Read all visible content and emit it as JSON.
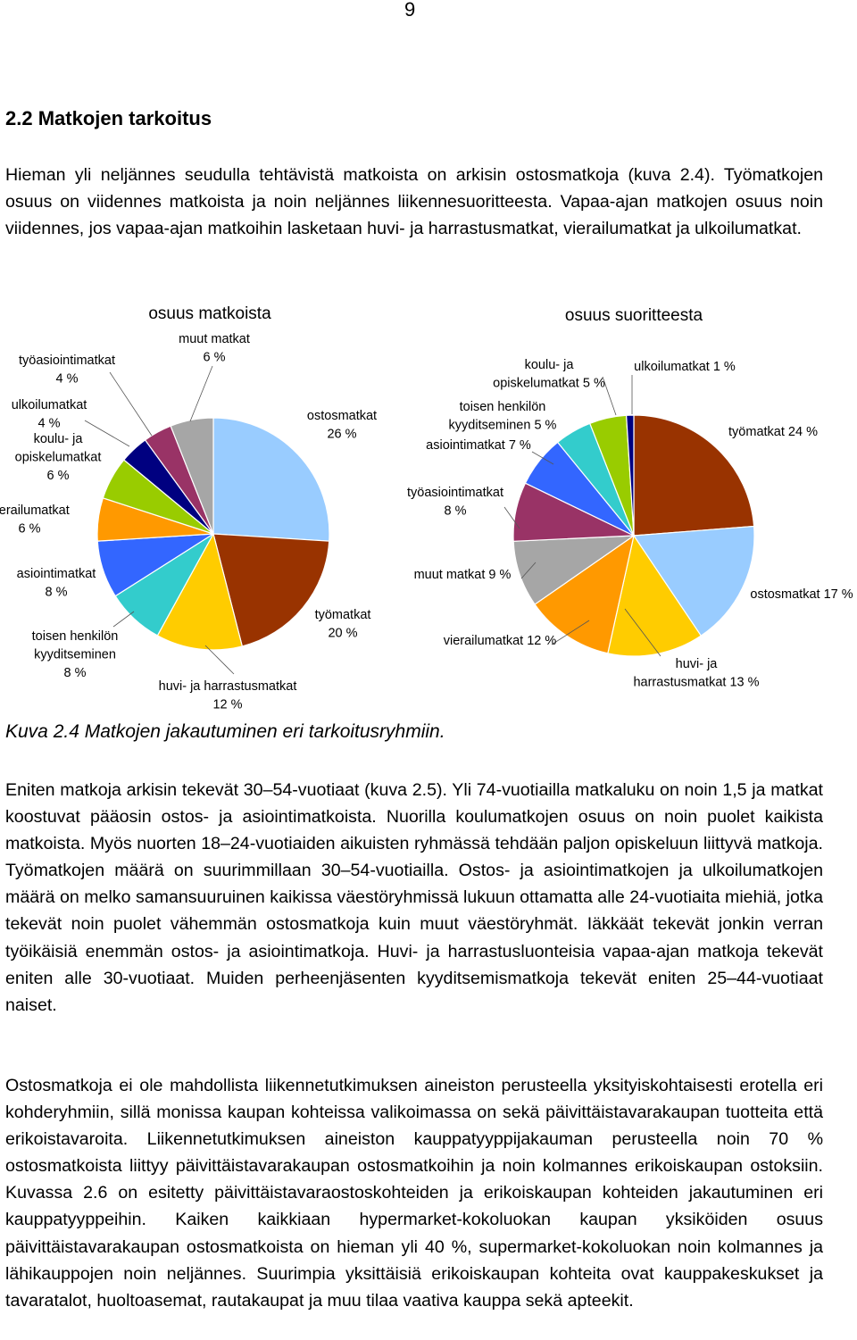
{
  "page_number": "9",
  "heading": "2.2 Matkojen tarkoitus",
  "paragraphs": [
    "Hieman yli neljännes seudulla tehtävistä matkoista on arkisin ostosmatkoja (kuva 2.4). Työmatkojen osuus on viidennes matkoista ja noin neljännes liikennesuoritteesta. Vapaa-ajan matkojen osuus noin viidennes, jos vapaa-ajan matkoihin lasketaan huvi- ja harrastusmatkat, vierailumatkat ja ulkoilumatkat.",
    "Eniten matkoja arkisin tekevät 30–54-vuotiaat (kuva 2.5). Yli 74-vuotiailla matkaluku on noin 1,5 ja matkat koostuvat pääosin ostos- ja asiointimatkoista. Nuorilla koulumatkojen osuus on noin puolet kaikista matkoista. Myös nuorten 18–24-vuotiaiden aikuisten ryhmässä tehdään paljon opiskeluun liittyvä matkoja. Työmatkojen määrä on suurimmillaan 30–54-vuotiailla. Ostos- ja asiointimatkojen ja ulkoilumatkojen määrä on melko samansuuruinen kaikissa väestöryhmissä lukuun ottamatta alle 24-vuotiaita miehiä, jotka tekevät noin puolet vähemmän ostosmatkoja kuin muut väestöryhmät. Iäkkäät tekevät jonkin verran työikäisiä enemmän ostos- ja asiointimatkoja. Huvi- ja harrastusluonteisia vapaa-ajan matkoja tekevät eniten alle 30-vuotiaat. Muiden perheenjäsenten kyydit­semismatkoja tekevät eniten 25–44-vuotiaat naiset.",
    "Ostosmatkoja ei ole mahdollista liikennetutkimuksen aineiston perusteella yksityiskohtaisesti erotella eri kohderyhmiin, sillä monissa kaupan kohteissa valikoimassa on sekä päivittäistavarakaupan tuotteita että erikoistavaroita. Liikennetutkimuksen aineiston kauppatyyppijakauman perusteella noin 70 % ostosmatkoista liittyy päivittäistavarakaupan ostosmatkoihin ja noin kolmannes erikoiskaupan ostoksiin. Kuvassa 2.6 on esitetty päivittäistavaraostos­kohteiden ja erikoiskaupan kohteiden jakautuminen eri kauppatyyppeihin. Kaiken kaikkiaan hypermarket-kokoluokan kaupan yksiköiden osuus päivittäistavarakaupan ostosmatkoista on hieman yli 40 %, supermarket-kokoluokan noin kolmannes ja lähikauppojen noin neljännes. Suurimpia yksittäisiä erikoiskaupan kohteita ovat kauppakeskukset ja tavaratalot, huoltoasemat, rautakaupat ja muu tilaa vaativa kauppa sekä apteekit."
  ],
  "caption": "Kuva 2.4 Matkojen jakautuminen eri tarkoitusryhmiin.",
  "chart_data": [
    {
      "type": "pie",
      "title": "osuus matkoista",
      "slices": [
        {
          "label": "ostosmatkat",
          "value": 26,
          "color": "#99ccff"
        },
        {
          "label": "työmatkat",
          "value": 20,
          "color": "#993300"
        },
        {
          "label": "huvi- ja harrastusmatkat",
          "value": 12,
          "color": "#ffcc00"
        },
        {
          "label": "toisen henkilön kyydit­seminen",
          "value": 8,
          "color": "#33cccc"
        },
        {
          "label": "asiointimatkat",
          "value": 8,
          "color": "#3366ff"
        },
        {
          "label": "vierailumatkat",
          "value": 6,
          "color": "#ff9900"
        },
        {
          "label": "koulu- ja opiskelumatkat",
          "value": 6,
          "color": "#99cc00"
        },
        {
          "label": "ulkoilumatkat",
          "value": 4,
          "color": "#000080"
        },
        {
          "label": "työasiointimatkat",
          "value": 4,
          "color": "#993366"
        },
        {
          "label": "muut matkat",
          "value": 6,
          "color": "#a6a6a6"
        }
      ],
      "labels": [
        [
          "ostosmatkat",
          "26 %"
        ],
        [
          "työmatkat",
          "20 %"
        ],
        [
          "huvi- ja harrastusmatkat",
          "12 %"
        ],
        [
          "toisen henkilön",
          "kyyditseminen",
          "8 %"
        ],
        [
          "asiointimatkat",
          "8 %"
        ],
        [
          "vierailumatkat",
          "6 %"
        ],
        [
          "koulu- ja",
          "opiskelumatkat",
          "6 %"
        ],
        [
          "ulkoilumatkat",
          "4 %"
        ],
        [
          "työasiointimatkat",
          "4 %"
        ],
        [
          "muut matkat",
          "6 %"
        ]
      ]
    },
    {
      "type": "pie",
      "title": "osuus suoritteesta",
      "slices": [
        {
          "label": "työmatkat",
          "value": 24,
          "color": "#993300"
        },
        {
          "label": "ostosmatkat",
          "value": 17,
          "color": "#99ccff"
        },
        {
          "label": "huvi- ja harrastusmatkat",
          "value": 13,
          "color": "#ffcc00"
        },
        {
          "label": "vierailumatkat",
          "value": 12,
          "color": "#ff9900"
        },
        {
          "label": "muut matkat",
          "value": 9,
          "color": "#a6a6a6"
        },
        {
          "label": "työasiointimatkat",
          "value": 8,
          "color": "#993366"
        },
        {
          "label": "asiointimatkat",
          "value": 7,
          "color": "#3366ff"
        },
        {
          "label": "toisen henkilön kyydit­seminen",
          "value": 5,
          "color": "#33cccc"
        },
        {
          "label": "koulu- ja opiskelumatkat",
          "value": 5,
          "color": "#99cc00"
        },
        {
          "label": "ulkoilumatkat",
          "value": 1,
          "color": "#000080"
        }
      ],
      "labels": [
        [
          "työmatkat 24 %"
        ],
        [
          "ostosmatkat 17 %"
        ],
        [
          "huvi- ja",
          "harrastusmatkat 13 %"
        ],
        [
          "vierailumatkat 12 %"
        ],
        [
          "muut matkat 9 %"
        ],
        [
          "työasiointimatkat",
          "8 %"
        ],
        [
          "asiointimatkat 7 %"
        ],
        [
          "toisen henkilön",
          "kyyditseminen 5 %"
        ],
        [
          "koulu- ja",
          "opiskelumatkat 5 %"
        ],
        [
          "ulkoilumatkat 1 %"
        ]
      ]
    }
  ]
}
